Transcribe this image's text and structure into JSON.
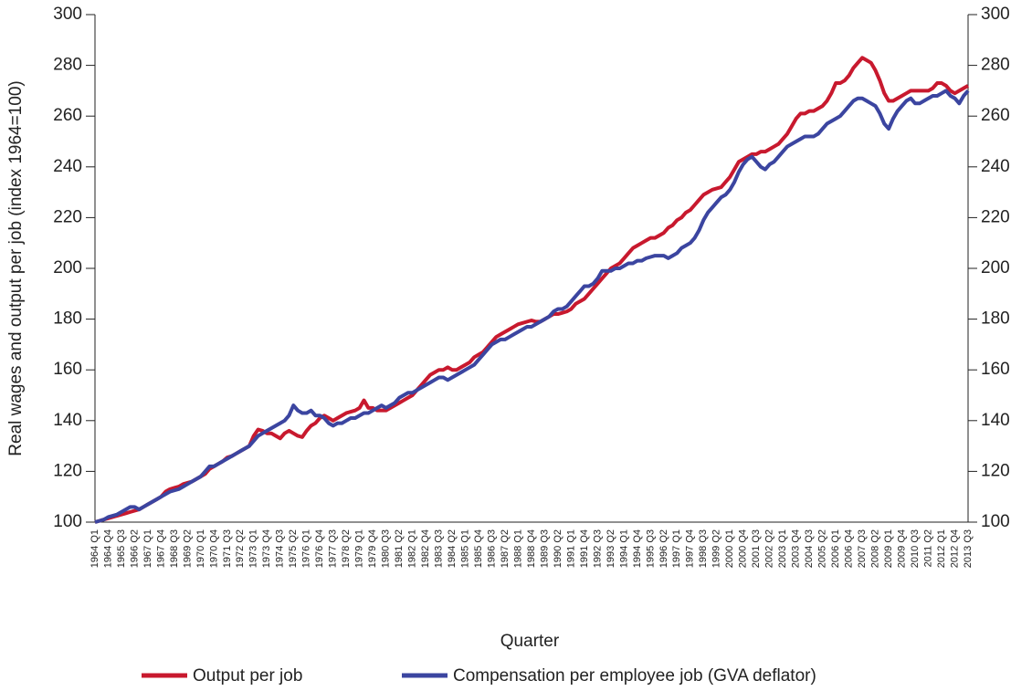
{
  "chart_data": {
    "type": "line",
    "x_label": "Quarter",
    "y_label": "Real wages and output per job (index 1964=100)",
    "categories": [
      "1964 Q1",
      null,
      null,
      "1964 Q4",
      null,
      null,
      "1965 Q3",
      null,
      null,
      "1966 Q2",
      null,
      null,
      "1967 Q1",
      null,
      null,
      "1967 Q4",
      null,
      null,
      "1968 Q3",
      null,
      null,
      "1969 Q2",
      null,
      null,
      "1970 Q1",
      null,
      null,
      "1970 Q4",
      null,
      null,
      "1971 Q3",
      null,
      null,
      "1972 Q2",
      null,
      null,
      "1973 Q1",
      null,
      null,
      "1973 Q4",
      null,
      null,
      "1974 Q3",
      null,
      null,
      "1975 Q2",
      null,
      null,
      "1976 Q1",
      null,
      null,
      "1976 Q4",
      null,
      null,
      "1977 Q3",
      null,
      null,
      "1978 Q2",
      null,
      null,
      "1979 Q1",
      null,
      null,
      "1979 Q4",
      null,
      null,
      "1980 Q3",
      null,
      null,
      "1981 Q2",
      null,
      null,
      "1982 Q1",
      null,
      null,
      "1982 Q4",
      null,
      null,
      "1983 Q3",
      null,
      null,
      "1984 Q2",
      null,
      null,
      "1985 Q1",
      null,
      null,
      "1985 Q4",
      null,
      null,
      "1986 Q3",
      null,
      null,
      "1987 Q2",
      null,
      null,
      "1988 Q1",
      null,
      null,
      "1988 Q4",
      null,
      null,
      "1989 Q3",
      null,
      null,
      "1990 Q2",
      null,
      null,
      "1991 Q1",
      null,
      null,
      "1991 Q4",
      null,
      null,
      "1992 Q3",
      null,
      null,
      "1993 Q2",
      null,
      null,
      "1994 Q1",
      null,
      null,
      "1994 Q4",
      null,
      null,
      "1995 Q3",
      null,
      null,
      "1996 Q2",
      null,
      null,
      "1997 Q1",
      null,
      null,
      "1997 Q4",
      null,
      null,
      "1998 Q3",
      null,
      null,
      "1999 Q2",
      null,
      null,
      "2000 Q1",
      null,
      null,
      "2000 Q4",
      null,
      null,
      "2001 Q3",
      null,
      null,
      "2002 Q2",
      null,
      null,
      "2003 Q1",
      null,
      null,
      "2003 Q4",
      null,
      null,
      "2004 Q3",
      null,
      null,
      "2005 Q2",
      null,
      null,
      "2006 Q1",
      null,
      null,
      "2006 Q4",
      null,
      null,
      "2007 Q3",
      null,
      null,
      "2008 Q2",
      null,
      null,
      "2009 Q1",
      null,
      null,
      "2009 Q4",
      null,
      null,
      "2010 Q3",
      null,
      null,
      "2011 Q2",
      null,
      null,
      "2012 Q1",
      null,
      null,
      "2012 Q4",
      null,
      null,
      "2013 Q3"
    ],
    "series": [
      {
        "name": "Output per job",
        "color": "#c8192e",
        "values": [
          100,
          100.5,
          101,
          101.5,
          102,
          102.5,
          103,
          103.5,
          104,
          104.5,
          105,
          106,
          107,
          108,
          109,
          110,
          112,
          113,
          113.5,
          114,
          115,
          115.5,
          116,
          117,
          118,
          119,
          121,
          122,
          123,
          124,
          125.5,
          126,
          127,
          128,
          129,
          130,
          134,
          136.5,
          136,
          135,
          135,
          134,
          133,
          135,
          136,
          135,
          134,
          133.5,
          136,
          138,
          139,
          141,
          142,
          141,
          140,
          141,
          142,
          143,
          143.5,
          144,
          145,
          148,
          145,
          145,
          144,
          144,
          144,
          145,
          146,
          147,
          148,
          149,
          150,
          152,
          154,
          156,
          158,
          159,
          160,
          160,
          161,
          160,
          160,
          161,
          162,
          163,
          165,
          166,
          167,
          169,
          171,
          173,
          174,
          175,
          176,
          177,
          178,
          178.5,
          179,
          179.5,
          179,
          179,
          180,
          181,
          182,
          182,
          182.5,
          183,
          184,
          186,
          187,
          188,
          190,
          192,
          194,
          196,
          198,
          200,
          201,
          202,
          204,
          206,
          208,
          209,
          210,
          211,
          212,
          212,
          213,
          214,
          216,
          217,
          219,
          220,
          222,
          223,
          225,
          227,
          229,
          230,
          231,
          231.5,
          232,
          234,
          236,
          239,
          242,
          243,
          244,
          245,
          245,
          246,
          246,
          247,
          248,
          249,
          251,
          253,
          256,
          259,
          261,
          261,
          262,
          262,
          263,
          264,
          266,
          269,
          273,
          273,
          274,
          276,
          279,
          281,
          283,
          282,
          281,
          278,
          274,
          269,
          266,
          266,
          267,
          268,
          269,
          270,
          270,
          270,
          270,
          270,
          271,
          273,
          273,
          272,
          270,
          269,
          270,
          271,
          272
        ]
      },
      {
        "name": "Compensation per employee job (GVA deflator)",
        "color": "#3b45a0",
        "values": [
          100,
          100.5,
          101,
          102,
          102.5,
          103,
          104,
          105,
          106,
          106,
          105,
          106,
          107,
          108,
          109,
          110,
          111,
          112,
          112.5,
          113,
          114,
          115,
          116,
          117,
          118,
          120,
          122,
          122,
          123,
          124,
          125,
          126,
          127,
          128,
          129,
          130,
          132,
          134,
          135,
          136,
          137,
          138,
          139,
          140,
          142,
          146,
          144,
          143,
          143,
          144,
          142,
          142,
          141,
          139,
          138,
          139,
          139,
          140,
          141,
          141,
          142,
          143,
          143,
          144,
          145,
          146,
          145,
          146,
          147,
          149,
          150,
          151,
          151,
          152,
          153,
          154,
          155,
          156,
          157,
          157,
          156,
          157,
          158,
          159,
          160,
          161,
          162,
          164,
          166,
          168,
          170,
          171,
          172,
          172,
          173,
          174,
          175,
          176,
          177,
          177,
          178,
          179,
          180,
          181,
          183,
          184,
          184,
          185,
          187,
          189,
          191,
          193,
          193,
          194,
          196,
          199,
          199,
          199,
          200,
          200,
          201,
          202,
          202,
          203,
          203,
          204,
          204.5,
          205,
          205,
          205,
          204,
          205,
          206,
          208,
          209,
          210,
          212,
          215,
          219,
          222,
          224,
          226,
          228,
          229,
          231,
          234,
          238,
          241,
          243,
          244,
          242,
          240,
          239,
          241,
          242,
          244,
          246,
          248,
          249,
          250,
          251,
          252,
          252,
          252,
          253,
          255,
          257,
          258,
          259,
          260,
          262,
          264,
          266,
          267,
          267,
          266,
          265,
          264,
          261,
          257,
          255,
          259,
          262,
          264,
          266,
          267,
          265,
          265,
          266,
          267,
          268,
          268,
          269,
          270,
          268,
          267,
          265,
          268,
          270
        ]
      }
    ],
    "ylim": [
      100,
      300
    ],
    "yticks": [
      100,
      120,
      140,
      160,
      180,
      200,
      220,
      240,
      260,
      280,
      300
    ],
    "y2lim": [
      100,
      300
    ],
    "y2ticks": [
      100,
      120,
      140,
      160,
      180,
      200,
      220,
      240,
      260,
      280,
      300
    ],
    "grid": false,
    "legend": "bottom"
  }
}
